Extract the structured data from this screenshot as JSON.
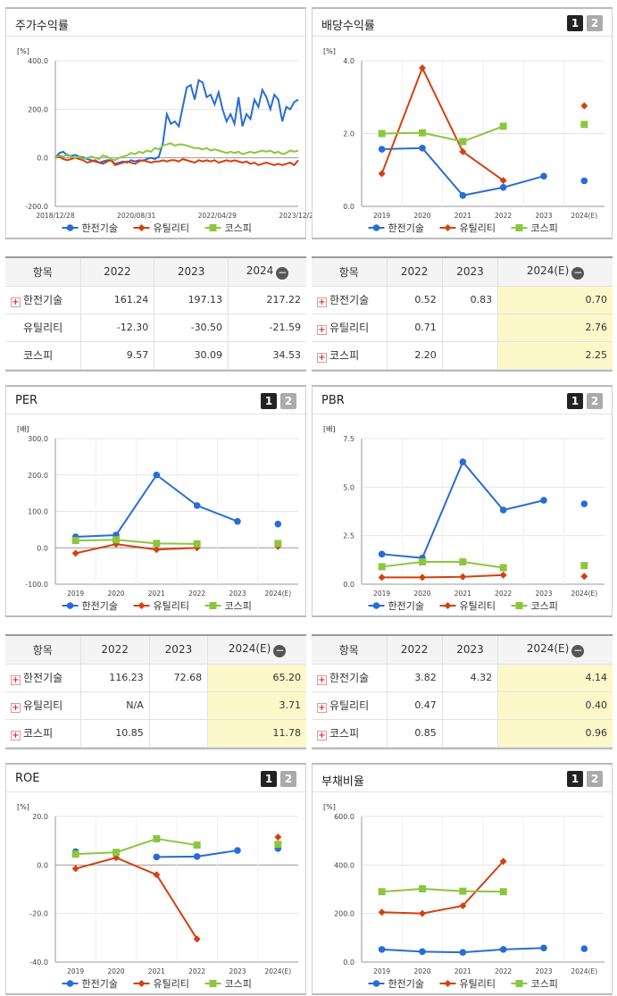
{
  "top_tabs": [
    "",
    "",
    ""
  ],
  "panels": {
    "stock": {
      "title": "주가수익률"
    },
    "dividend": {
      "title": "배당수익률"
    },
    "per": {
      "title": "PER"
    },
    "pbr": {
      "title": "PBR"
    },
    "roe": {
      "title": "ROE"
    },
    "debt": {
      "title": "부채비율"
    }
  },
  "buttons": {
    "one": "1",
    "two": "2"
  },
  "legend": [
    "한전기술",
    "유틸리티",
    "코스피"
  ],
  "colors": {
    "kepco": "#2a6cd6",
    "util": "#d4400f",
    "kospi": "#8cc63e"
  },
  "tables": {
    "stock": {
      "headers": [
        "항목",
        "2022",
        "2023",
        "2024"
      ],
      "rows": [
        {
          "name": "한전기술",
          "plus": true,
          "vals": [
            "161.24",
            "197.13",
            "217.22"
          ]
        },
        {
          "name": "유틸리티",
          "plus": false,
          "vals": [
            "-12.30",
            "-30.50",
            "-21.59"
          ]
        },
        {
          "name": "코스피",
          "plus": false,
          "vals": [
            "9.57",
            "30.09",
            "34.53"
          ]
        }
      ]
    },
    "dividend": {
      "headers": [
        "항목",
        "2022",
        "2023",
        "2024(E)"
      ],
      "rows": [
        {
          "name": "한전기술",
          "plus": true,
          "vals": [
            "0.52",
            "0.83",
            "0.70"
          ]
        },
        {
          "name": "유틸리티",
          "plus": true,
          "vals": [
            "0.71",
            "",
            "2.76"
          ]
        },
        {
          "name": "코스피",
          "plus": true,
          "vals": [
            "2.20",
            "",
            "2.25"
          ]
        }
      ]
    },
    "per": {
      "headers": [
        "항목",
        "2022",
        "2023",
        "2024(E)"
      ],
      "rows": [
        {
          "name": "한전기술",
          "plus": true,
          "vals": [
            "116.23",
            "72.68",
            "65.20"
          ]
        },
        {
          "name": "유틸리티",
          "plus": true,
          "vals": [
            "N/A",
            "",
            "3.71"
          ]
        },
        {
          "name": "코스피",
          "plus": true,
          "vals": [
            "10.85",
            "",
            "11.78"
          ]
        }
      ]
    },
    "pbr": {
      "headers": [
        "항목",
        "2022",
        "2023",
        "2024(E)"
      ],
      "rows": [
        {
          "name": "한전기술",
          "plus": true,
          "vals": [
            "3.82",
            "4.32",
            "4.14"
          ]
        },
        {
          "name": "유틸리티",
          "plus": true,
          "vals": [
            "0.47",
            "",
            "0.40"
          ]
        },
        {
          "name": "코스피",
          "plus": true,
          "vals": [
            "0.85",
            "",
            "0.96"
          ]
        }
      ]
    }
  },
  "chart_data": [
    {
      "id": "stock",
      "type": "line",
      "ylabel": "[%]",
      "ylim": [
        -200,
        400
      ],
      "yticks": [
        -200,
        0,
        200,
        400
      ],
      "ytick_labels": [
        "-200.0",
        "0.0",
        "200.0",
        "400.0"
      ],
      "xtick_labels": [
        "2018/12/28",
        "2020/08/31",
        "2022/04/29",
        "2023/12/28"
      ],
      "series": [
        {
          "name": "한전기술",
          "values": [
            0,
            20,
            25,
            10,
            8,
            12,
            5,
            2,
            -5,
            -10,
            -15,
            -20,
            -15,
            -10,
            -10,
            -25,
            -20,
            -15,
            -20,
            -10,
            -15,
            -10,
            -12,
            -5,
            0,
            -5,
            5,
            60,
            180,
            140,
            150,
            130,
            210,
            290,
            300,
            240,
            320,
            310,
            250,
            260,
            220,
            270,
            200,
            150,
            180,
            140,
            250,
            130,
            180,
            160,
            240,
            210,
            280,
            250,
            200,
            260,
            240,
            150,
            210,
            200,
            230,
            240
          ]
        },
        {
          "name": "유틸리티",
          "values": [
            0,
            5,
            -5,
            -10,
            -5,
            0,
            -5,
            -10,
            -20,
            -15,
            -10,
            -20,
            -25,
            -15,
            -10,
            -30,
            -25,
            -20,
            -15,
            -20,
            -25,
            -15,
            -10,
            -15,
            -20,
            -15,
            -15,
            -10,
            -15,
            -10,
            -10,
            -15,
            -5,
            -10,
            -15,
            -20,
            -10,
            -15,
            -10,
            -15,
            -10,
            -20,
            -15,
            -10,
            -15,
            -10,
            -15,
            -20,
            -15,
            -25,
            -20,
            -30,
            -25,
            -20,
            -25,
            -30,
            -25,
            -30,
            -25,
            -20,
            -30,
            -10
          ]
        },
        {
          "name": "코스피",
          "values": [
            0,
            10,
            5,
            15,
            5,
            0,
            5,
            -5,
            0,
            5,
            0,
            -5,
            10,
            5,
            -5,
            -10,
            0,
            5,
            10,
            20,
            15,
            25,
            20,
            30,
            25,
            40,
            35,
            50,
            55,
            60,
            50,
            55,
            55,
            50,
            45,
            40,
            40,
            35,
            40,
            30,
            35,
            30,
            25,
            20,
            25,
            20,
            25,
            15,
            20,
            25,
            20,
            25,
            30,
            25,
            30,
            20,
            25,
            15,
            20,
            30,
            25,
            30
          ]
        }
      ]
    },
    {
      "id": "dividend",
      "type": "line",
      "ylabel": "[%]",
      "ylim": [
        0,
        4
      ],
      "yticks": [
        0,
        2,
        4
      ],
      "ytick_labels": [
        "0.0",
        "2.0",
        "4.0"
      ],
      "categories": [
        "2019",
        "2020",
        "2021",
        "2022",
        "2023",
        "2024(E)"
      ],
      "series": [
        {
          "name": "한전기술",
          "values": [
            1.57,
            1.6,
            0.3,
            0.52,
            0.83,
            0.7
          ]
        },
        {
          "name": "유틸리티",
          "values": [
            0.9,
            3.8,
            1.5,
            0.71,
            null,
            2.76
          ]
        },
        {
          "name": "코스피",
          "values": [
            2.0,
            2.02,
            1.78,
            2.2,
            null,
            2.25
          ]
        }
      ]
    },
    {
      "id": "per",
      "type": "line",
      "ylabel": "[배]",
      "ylim": [
        -100,
        300
      ],
      "yticks": [
        -100,
        0,
        100,
        200,
        300
      ],
      "ytick_labels": [
        "-100.0",
        "0.0",
        "100.0",
        "200.0",
        "300.0"
      ],
      "categories": [
        "2019",
        "2020",
        "2021",
        "2022",
        "2023",
        "2024(E)"
      ],
      "series": [
        {
          "name": "한전기술",
          "values": [
            30,
            35,
            200,
            116.23,
            72.68,
            65.2
          ]
        },
        {
          "name": "유틸리티",
          "values": [
            -15,
            10,
            -5,
            0,
            null,
            3.71
          ]
        },
        {
          "name": "코스피",
          "values": [
            20,
            22,
            12,
            10.85,
            null,
            11.78
          ]
        }
      ]
    },
    {
      "id": "pbr",
      "type": "line",
      "ylabel": "[배]",
      "ylim": [
        0,
        7.5
      ],
      "yticks": [
        0,
        2.5,
        5,
        7.5
      ],
      "ytick_labels": [
        "0.0",
        "2.5",
        "5.0",
        "7.5"
      ],
      "categories": [
        "2019",
        "2020",
        "2021",
        "2022",
        "2023",
        "2024(E)"
      ],
      "series": [
        {
          "name": "한전기술",
          "values": [
            1.55,
            1.35,
            6.3,
            3.82,
            4.32,
            4.14
          ]
        },
        {
          "name": "유틸리티",
          "values": [
            0.35,
            0.35,
            0.38,
            0.47,
            null,
            0.4
          ]
        },
        {
          "name": "코스피",
          "values": [
            0.9,
            1.15,
            1.15,
            0.85,
            null,
            0.96
          ]
        }
      ]
    },
    {
      "id": "roe",
      "type": "line",
      "ylabel": "[%]",
      "ylim": [
        -40,
        20
      ],
      "yticks": [
        -40,
        -20,
        0,
        20
      ],
      "ytick_labels": [
        "-40.0",
        "-20.0",
        "0.0",
        "20.0"
      ],
      "categories": [
        "2019",
        "2020",
        "2021",
        "2022",
        "2023",
        "2024(E)"
      ],
      "series": [
        {
          "name": "한전기술",
          "values": [
            5.5,
            null,
            3.3,
            3.5,
            6.0,
            6.8
          ]
        },
        {
          "name": "유틸리티",
          "values": [
            -1.5,
            3.0,
            -4.0,
            -30.5,
            null,
            11.5
          ]
        },
        {
          "name": "코스피",
          "values": [
            4.5,
            5.2,
            10.8,
            8.2,
            null,
            8.5
          ]
        }
      ]
    },
    {
      "id": "debt",
      "type": "line",
      "ylabel": "[%]",
      "ylim": [
        0,
        600
      ],
      "yticks": [
        0,
        200,
        400,
        600
      ],
      "ytick_labels": [
        "0.0",
        "200.0",
        "400.0",
        "600.0"
      ],
      "categories": [
        "2019",
        "2020",
        "2021",
        "2022",
        "2023",
        "2024(E)"
      ],
      "series": [
        {
          "name": "한전기술",
          "values": [
            52,
            43,
            40,
            52,
            58,
            55
          ]
        },
        {
          "name": "유틸리티",
          "values": [
            205,
            200,
            232,
            415,
            null,
            null
          ]
        },
        {
          "name": "코스피",
          "values": [
            290,
            302,
            292,
            290,
            null,
            null
          ]
        }
      ]
    }
  ]
}
